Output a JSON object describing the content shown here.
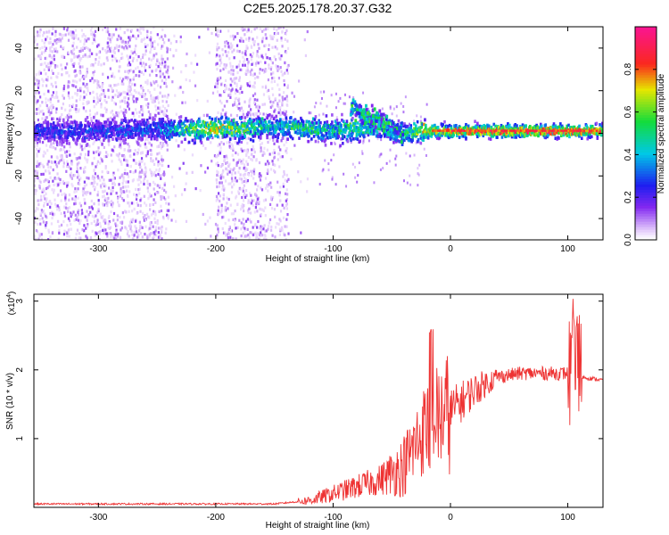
{
  "title": "C2E5.2025.178.20.37.G32",
  "chart_data": [
    {
      "type": "heatmap",
      "name": "spectrogram",
      "xlabel": "Height of straight line (km)",
      "ylabel": "Frequency (Hz)",
      "xlim": [
        -355,
        130
      ],
      "ylim": [
        -50,
        50
      ],
      "x_ticks": [
        -300,
        -200,
        -100,
        0,
        100
      ],
      "y_ticks": [
        -40,
        -20,
        0,
        20,
        40
      ],
      "colorbar": {
        "label": "Normalized spectral amplitude",
        "ticks": [
          "0.0",
          "0.2",
          "0.4",
          "0.6",
          "0.8"
        ],
        "range": [
          0,
          1
        ],
        "colormap": "white-violet-blue-cyan-green-yellow-red-magenta"
      },
      "ridge": {
        "x": [
          -355,
          -300,
          -250,
          -200,
          -150,
          -130,
          -100,
          -80,
          -65,
          -45,
          -30,
          -15,
          0,
          50,
          100,
          130
        ],
        "center_freq": [
          1,
          1,
          2,
          2,
          3,
          3,
          1,
          2,
          4,
          0,
          1,
          1,
          1,
          1,
          1,
          1
        ],
        "peak_amplitude": [
          0.28,
          0.3,
          0.35,
          0.75,
          0.45,
          0.55,
          0.5,
          0.6,
          0.55,
          0.45,
          0.6,
          0.8,
          0.85,
          0.9,
          0.9,
          0.8
        ]
      }
    },
    {
      "type": "line",
      "name": "snr",
      "xlabel": "Height of straight line (km)",
      "ylabel": "SNR (10 * v/v)",
      "y_multiplier": "(x10",
      "y_multiplier_exp": "4",
      "xlim": [
        -355,
        130
      ],
      "ylim": [
        0,
        3.1
      ],
      "x_ticks": [
        -300,
        -200,
        -100,
        0,
        100
      ],
      "y_ticks": [
        1,
        2,
        3
      ],
      "color": "#ee3333",
      "series": [
        {
          "x": [
            -355,
            -300,
            -250,
            -200,
            -150,
            -120,
            -100,
            -80,
            -60,
            -40,
            -20,
            -10,
            0,
            20,
            40,
            60,
            80,
            100,
            110,
            130
          ],
          "y": [
            0.05,
            0.05,
            0.05,
            0.05,
            0.05,
            0.1,
            0.2,
            0.3,
            0.4,
            0.6,
            1.2,
            1.3,
            1.4,
            1.7,
            1.9,
            1.95,
            1.95,
            1.95,
            1.9,
            1.85
          ]
        }
      ]
    }
  ]
}
